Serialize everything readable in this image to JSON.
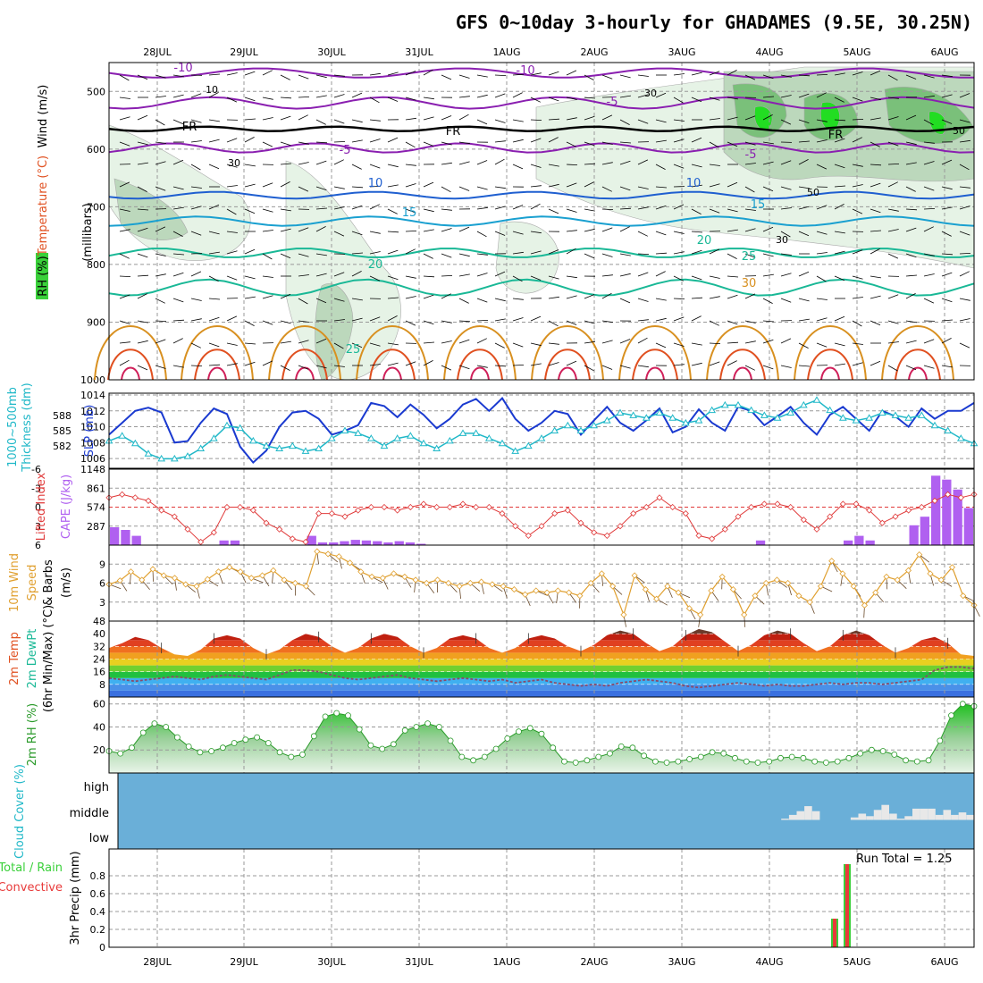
{
  "title": "GFS 0~10day 3-hourly for GHADAMES (9.5E, 30.25N)",
  "colors": {
    "temp_cold": "#8a1fb0",
    "temp_cool": "#1f5fd0",
    "temp_mild": "#1aa0d0",
    "temp_warm": "#19b896",
    "temp_hot": "#d89020",
    "temp_vhot": "#e05020",
    "rh_light": "#e6f3e6",
    "rh_mid": "#bcd8bc",
    "rh_high": "#7ac07a",
    "rh_max": "#22dd22",
    "slp": "#1a3ad0",
    "thickness": "#20b8c8",
    "li": "#e03a3a",
    "cape": "#b060f0",
    "wind": "#e0a030",
    "cloud_bg": "#6aafd8",
    "cloud": "#e8e8e8",
    "rain": "#3ad03a",
    "conv": "#e83a3a",
    "rh2m": "#2a9a2a"
  },
  "chart_data": [
    {
      "id": "upper_air",
      "type": "heatmap",
      "ylabel_parts": [
        "RH (%)",
        "Temperature (°C)",
        "Wind (m/s)"
      ],
      "ylabel2": "(millibars)",
      "y_ticks": [
        500,
        600,
        700,
        800,
        900,
        1000
      ],
      "ylim": [
        1000,
        450
      ],
      "x_ticks": [
        "28JUL",
        "29JUL",
        "30JUL",
        "31JUL",
        "1AUG",
        "2AUG",
        "3AUG",
        "4AUG",
        "5AUG",
        "6AUG"
      ],
      "isotherm_labels": [
        "-10",
        "-10",
        "-5",
        "-5",
        "-5",
        "10",
        "10",
        "15",
        "15",
        "20",
        "20",
        "25",
        "30",
        "25",
        "FR",
        "FR",
        "FR"
      ],
      "rh_labels": [
        "10",
        "30",
        "30",
        "50",
        "50",
        "30"
      ],
      "freezing_level_mb": 565
    },
    {
      "id": "slp_thickness",
      "type": "line",
      "ylabel_left": "Thickness (dm)",
      "ylabel_left2": "1000~500mb",
      "ylabel_right": "SLP (mb)",
      "left_ticks": [
        588,
        585,
        582
      ],
      "right_ticks": [
        1014,
        1012,
        1010,
        1008,
        1006
      ],
      "series": [
        {
          "name": "SLP (mb)",
          "values": [
            1009.0,
            1010.5,
            1012.0,
            1012.4,
            1011.8,
            1008.0,
            1008.2,
            1010.5,
            1012.3,
            1011.6,
            1007.5,
            1005.5,
            1007.0,
            1010.0,
            1011.8,
            1012.0,
            1011.0,
            1009.0,
            1009.5,
            1010.2,
            1013.0,
            1012.6,
            1011.2,
            1012.8,
            1011.5,
            1009.8,
            1011.0,
            1012.8,
            1013.5,
            1012.0,
            1013.6,
            1011.0,
            1009.5,
            1010.5,
            1012.0,
            1011.6,
            1009.0,
            1010.8,
            1012.5,
            1010.5,
            1009.5,
            1010.8,
            1012.3,
            1009.3,
            1010.0,
            1012.2,
            1010.5,
            1009.5,
            1012.5,
            1012.0,
            1010.2,
            1011.3,
            1012.5,
            1010.5,
            1009.0,
            1011.5,
            1012.5,
            1011.0,
            1009.5,
            1012.0,
            1011.3,
            1010.0,
            1012.3,
            1011.0,
            1012.0,
            1012.0,
            1013.0
          ]
        },
        {
          "name": "Thickness (dm)",
          "values": [
            583.0,
            584.0,
            582.5,
            580.5,
            579.5,
            579.5,
            580.0,
            581.5,
            583.5,
            586.0,
            585.5,
            583.0,
            582.0,
            581.5,
            582.0,
            581.0,
            581.5,
            583.5,
            585.0,
            584.5,
            583.5,
            582.0,
            583.5,
            584.0,
            582.5,
            581.5,
            583.0,
            584.5,
            584.5,
            583.5,
            582.5,
            581.0,
            582.0,
            583.5,
            585.0,
            586.0,
            585.0,
            586.0,
            587.0,
            588.5,
            588.0,
            587.5,
            588.5,
            587.5,
            586.5,
            587.0,
            589.0,
            590.0,
            590.0,
            589.0,
            588.0,
            587.5,
            588.5,
            590.0,
            591.0,
            589.0,
            587.5,
            587.0,
            587.5,
            588.5,
            588.0,
            587.5,
            588.0,
            586.0,
            585.0,
            583.5,
            582.5
          ]
        }
      ]
    },
    {
      "id": "li_cape",
      "type": "bar",
      "ylabel_left": "Lifted Index",
      "ylabel_right": "CAPE (J/kg)",
      "li_ticks": [
        -6,
        -3,
        0,
        3,
        6
      ],
      "cape_ticks": [
        1148,
        861,
        574,
        287
      ],
      "series": [
        {
          "name": "Lifted Index",
          "values": [
            -1.5,
            -2.0,
            -1.5,
            -1.0,
            0.5,
            1.5,
            3.5,
            5.5,
            4.0,
            0.0,
            0.0,
            0.5,
            2.5,
            3.5,
            5.0,
            5.5,
            1.0,
            1.0,
            1.5,
            0.5,
            0.0,
            0.0,
            0.5,
            0.0,
            -0.5,
            0.0,
            0.0,
            -0.5,
            0.0,
            0.0,
            1.0,
            3.0,
            4.5,
            3.0,
            1.0,
            0.5,
            2.5,
            4.0,
            4.5,
            3.0,
            1.0,
            0.0,
            -1.5,
            0.0,
            1.0,
            4.5,
            5.0,
            3.5,
            1.5,
            0.0,
            -0.5,
            -0.5,
            0.0,
            2.0,
            3.5,
            1.5,
            -0.5,
            -0.5,
            0.5,
            2.5,
            1.5,
            0.5,
            0.0,
            -1.0,
            -2.0,
            -1.5,
            -2.0
          ]
        },
        {
          "name": "CAPE (J/kg)",
          "values": [
            270,
            230,
            140,
            0,
            0,
            0,
            0,
            0,
            0,
            0,
            70,
            70,
            0,
            0,
            0,
            0,
            0,
            0,
            140,
            40,
            40,
            60,
            80,
            70,
            60,
            40,
            60,
            40,
            20,
            0,
            0,
            0,
            0,
            0,
            0,
            0,
            0,
            0,
            0,
            0,
            0,
            0,
            0,
            0,
            0,
            0,
            0,
            0,
            0,
            0,
            0,
            0,
            0,
            0,
            0,
            0,
            0,
            0,
            0,
            70,
            0,
            0,
            0,
            0,
            0,
            0,
            0,
            70,
            140,
            70,
            0,
            0,
            0,
            300,
            430,
            1050,
            990,
            840,
            560
          ]
        }
      ]
    },
    {
      "id": "wind10m",
      "type": "line",
      "ylabel": "10m Wind Speed & Barbs (m/s)",
      "ylabel_parts": [
        "10m Wind",
        "Speed",
        "& Barbs",
        "(m/s)"
      ],
      "y_ticks": [
        9,
        6,
        3
      ],
      "ylim": [
        0,
        12
      ],
      "series": [
        {
          "name": "10m Wind Speed",
          "values": [
            5.8,
            6.4,
            7.8,
            6.5,
            8.2,
            7.2,
            6.8,
            5.8,
            5.5,
            6.6,
            7.8,
            8.5,
            7.8,
            6.8,
            7.2,
            8.0,
            6.5,
            6.0,
            5.5,
            11.0,
            10.6,
            10.2,
            9.2,
            7.8,
            7.0,
            6.8,
            7.5,
            7.0,
            6.5,
            6.0,
            6.5,
            6.0,
            5.5,
            6.0,
            6.2,
            5.8,
            5.5,
            5.0,
            4.2,
            4.8,
            4.5,
            4.8,
            4.5,
            4.0,
            6.0,
            7.5,
            5.5,
            1.0,
            7.2,
            5.0,
            3.5,
            5.5,
            4.5,
            2.0,
            1.0,
            4.8,
            7.0,
            5.0,
            1.0,
            4.0,
            6.0,
            6.5,
            6.0,
            4.0,
            3.0,
            5.5,
            9.5,
            7.5,
            5.5,
            2.5,
            4.5,
            7.0,
            6.5,
            8.0,
            10.5,
            7.5,
            6.5,
            8.5,
            4.0,
            2.5
          ]
        }
      ]
    },
    {
      "id": "t2m",
      "type": "area",
      "ylabel_parts": [
        "2m Temp",
        "2m DewPt",
        "(6hr Min/Max) (°C)"
      ],
      "y_ticks": [
        48,
        40,
        32,
        24,
        16,
        8
      ],
      "ylim": [
        0,
        48
      ],
      "series": [
        {
          "name": "2m Temp",
          "values": [
            31,
            34,
            38,
            36,
            31,
            27,
            26,
            30,
            37,
            39,
            37,
            31,
            27,
            30,
            36,
            40,
            38,
            32,
            28,
            31,
            37,
            40,
            38,
            32,
            28,
            31,
            37,
            39,
            37,
            31,
            28,
            31,
            37,
            39,
            37,
            32,
            29,
            33,
            39,
            42,
            40,
            34,
            29,
            32,
            39,
            43,
            41,
            35,
            29,
            33,
            39,
            42,
            40,
            34,
            29,
            32,
            39,
            42,
            39,
            33,
            28,
            31,
            36,
            38,
            34,
            27,
            26
          ]
        },
        {
          "name": "2m DewPt",
          "values": [
            12,
            11,
            10,
            11,
            12,
            13,
            12,
            11,
            13,
            14,
            13,
            12,
            11,
            14,
            17,
            17,
            16,
            14,
            12,
            11,
            12,
            13,
            14,
            12,
            11,
            10,
            11,
            12,
            11,
            10,
            11,
            9,
            10,
            11,
            9,
            8,
            7,
            8,
            7,
            9,
            10,
            11,
            10,
            9,
            7,
            6,
            7,
            8,
            9,
            8,
            7,
            8,
            7,
            7,
            8,
            9,
            8,
            9,
            9,
            8,
            9,
            10,
            11,
            17,
            19,
            19,
            18
          ]
        }
      ]
    },
    {
      "id": "rh2m",
      "type": "area",
      "ylabel": "2m RH (%)",
      "y_ticks": [
        60,
        40,
        20
      ],
      "ylim": [
        0,
        66
      ],
      "series": [
        {
          "name": "2m RH",
          "values": [
            19,
            17,
            22,
            35,
            43,
            40,
            31,
            23,
            18,
            19,
            22,
            26,
            29,
            31,
            26,
            18,
            14,
            16,
            32,
            49,
            52,
            50,
            38,
            24,
            21,
            25,
            37,
            40,
            43,
            40,
            28,
            14,
            11,
            14,
            21,
            30,
            36,
            39,
            34,
            22,
            10,
            9,
            11,
            14,
            17,
            23,
            22,
            15,
            10,
            9,
            10,
            12,
            14,
            18,
            17,
            13,
            10,
            9,
            10,
            13,
            14,
            13,
            10,
            9,
            10,
            13,
            17,
            20,
            19,
            16,
            11,
            10,
            11,
            28,
            50,
            60,
            58
          ]
        }
      ]
    },
    {
      "id": "cloud",
      "type": "bar",
      "ylabel": "Cloud Cover (%)",
      "levels": [
        "high",
        "middle",
        "low"
      ],
      "series": [
        {
          "name": "middle cloud",
          "values": [
            0,
            0,
            0,
            0,
            0,
            0,
            0,
            0,
            0,
            0,
            0,
            0,
            0,
            0,
            0,
            0,
            0,
            0,
            0,
            0,
            0,
            0,
            0,
            0,
            0,
            0,
            0,
            0,
            0,
            0,
            0,
            0,
            0,
            0,
            0,
            0,
            0,
            0,
            0,
            0,
            0,
            0,
            0,
            0,
            0,
            0,
            0,
            0,
            0,
            0,
            0,
            0,
            0,
            0,
            0,
            0,
            0,
            0,
            0,
            0,
            0,
            0,
            0,
            0,
            0,
            0,
            0,
            0,
            0,
            0,
            0,
            0,
            0,
            0,
            0,
            0,
            0,
            0,
            0,
            0,
            0,
            0,
            0,
            0,
            0,
            0,
            5,
            20,
            35,
            55,
            35,
            0,
            0,
            0,
            0,
            10,
            25,
            15,
            40,
            60,
            25,
            5,
            15,
            45,
            45,
            45,
            20,
            40,
            20,
            30,
            20
          ]
        }
      ]
    },
    {
      "id": "precip",
      "type": "bar",
      "ylabel": "3hr Precip (mm)",
      "legend_left": [
        "Total / Rain",
        "Convective"
      ],
      "y_ticks": [
        0.8,
        0.6,
        0.4,
        0.2,
        0
      ],
      "ylim": [
        0,
        1.0
      ],
      "run_total_label": "Run Total = 1.25",
      "series": [
        {
          "name": "Total / Rain",
          "values": [
            0.32,
            0.93
          ]
        },
        {
          "name": "Convective",
          "values": [
            0.32,
            0.93
          ]
        }
      ],
      "x_ticks": [
        "28JUL",
        "29JUL",
        "30JUL",
        "31JUL",
        "1AUG",
        "2AUG",
        "3AUG",
        "4AUG",
        "5AUG",
        "6AUG"
      ]
    }
  ]
}
